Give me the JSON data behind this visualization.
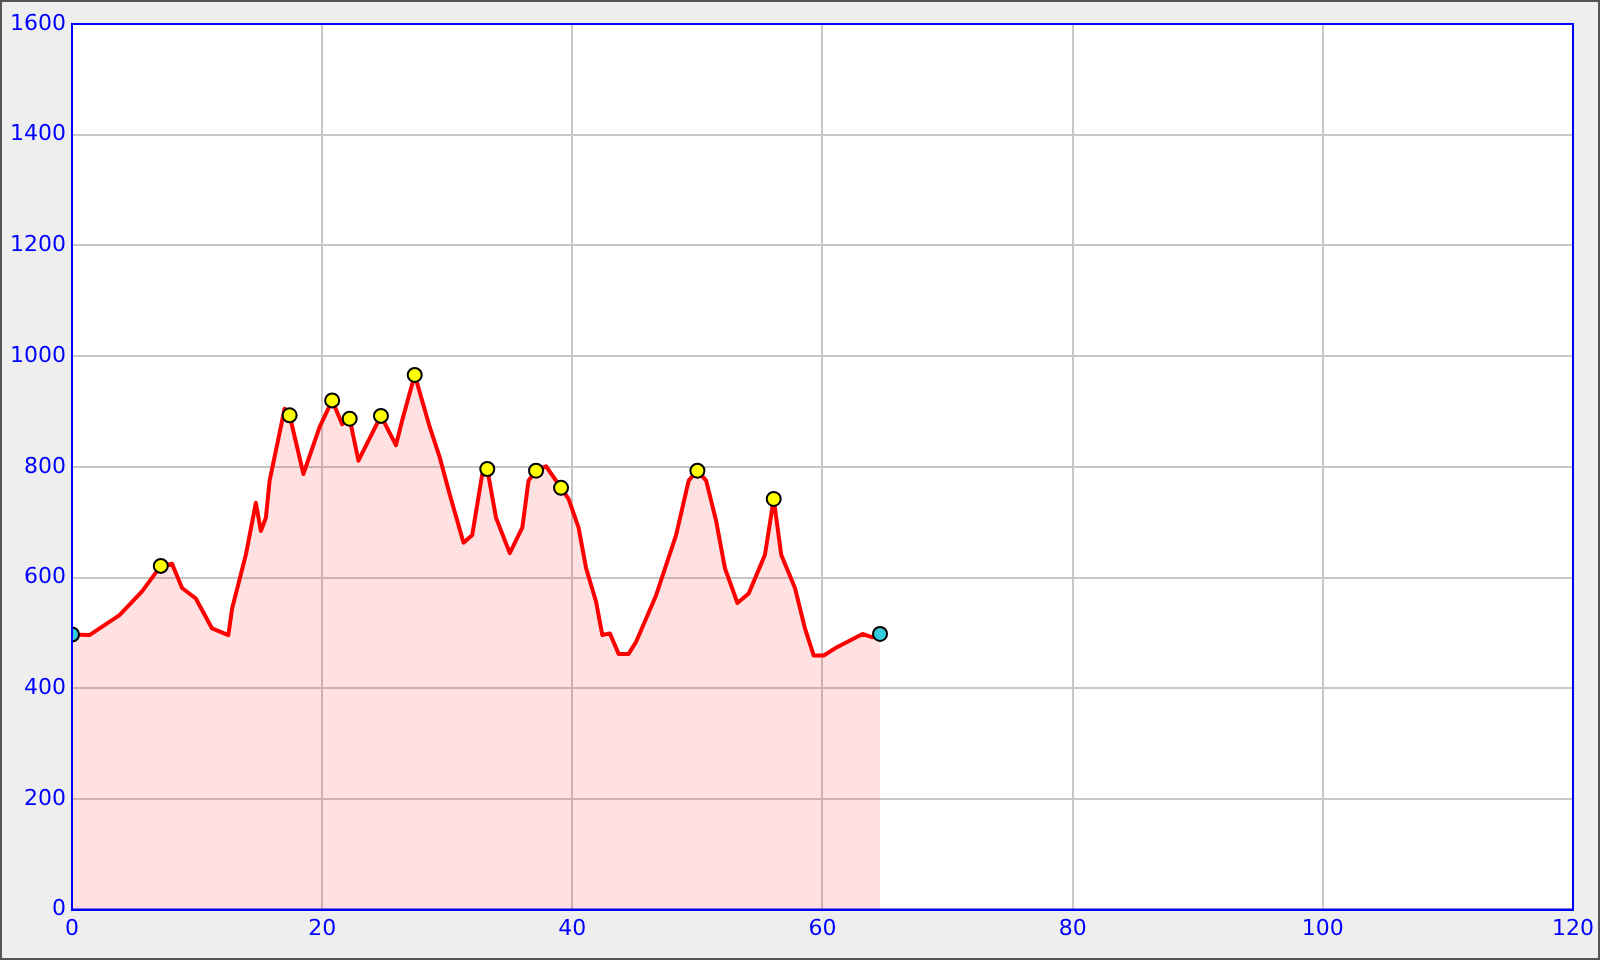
{
  "chart_data": {
    "type": "area",
    "xlim": [
      0,
      120
    ],
    "xticks": [
      0,
      20,
      40,
      60,
      80,
      100,
      120
    ],
    "ylim": [
      0,
      1600
    ],
    "yticks": [
      0,
      200,
      400,
      600,
      800,
      1000,
      1200,
      1400,
      1600
    ],
    "grid": true,
    "series": [
      {
        "color": "#ff0000",
        "x": [
          0,
          1.4,
          3.8,
          5.6,
          7.1,
          8.0,
          8.8,
          9.9,
          11.2,
          12.5,
          12.8,
          13.9,
          14.7,
          15.1,
          15.5,
          15.8,
          17.0,
          17.4,
          18.5,
          19.8,
          20.8,
          21.6,
          22.2,
          22.9,
          24.7,
          25.9,
          26.4,
          27.4,
          28.6,
          29.4,
          30.2,
          31.3,
          32.0,
          32.8,
          33.2,
          33.9,
          35.0,
          36.0,
          36.5,
          37.1,
          37.9,
          39.1,
          39.7,
          40.5,
          41.1,
          41.9,
          42.4,
          43.0,
          43.7,
          44.5,
          45.1,
          46.7,
          48.3,
          49.3,
          50.0,
          50.7,
          51.5,
          52.2,
          53.2,
          54.1,
          55.4,
          56.1,
          56.7,
          57.8,
          58.6,
          59.3,
          60.1,
          61.0,
          63.2,
          64.0,
          64.6
        ],
        "values": [
          497,
          496,
          532,
          575,
          621,
          625,
          581,
          562,
          508,
          496,
          544,
          641,
          735,
          684,
          708,
          775,
          905,
          893,
          787,
          872,
          920,
          877,
          887,
          811,
          892,
          839,
          884,
          966,
          872,
          817,
          750,
          663,
          677,
          787,
          796,
          708,
          644,
          690,
          775,
          793,
          801,
          762,
          742,
          690,
          617,
          556,
          496,
          499,
          462,
          462,
          484,
          568,
          677,
          775,
          793,
          775,
          702,
          617,
          554,
          571,
          641,
          742,
          641,
          581,
          508,
          459,
          459,
          472,
          498,
          492,
          498
        ]
      },
      {
        "type": "scatter",
        "marker": "circle",
        "colors": [
          "#33ccdd",
          "#ffff00",
          "#ffff00",
          "#ffff00",
          "#ffff00",
          "#ffff00",
          "#ffff00",
          "#ffff00",
          "#ffff00",
          "#ffff00",
          "#ffff00",
          "#ffff00",
          "#33ccdd"
        ],
        "x": [
          0,
          7.1,
          17.4,
          20.8,
          22.2,
          24.7,
          27.4,
          33.2,
          37.1,
          39.1,
          50.0,
          56.1,
          64.6
        ],
        "values": [
          497,
          621,
          893,
          920,
          887,
          892,
          966,
          796,
          793,
          762,
          793,
          742,
          498
        ]
      }
    ]
  }
}
